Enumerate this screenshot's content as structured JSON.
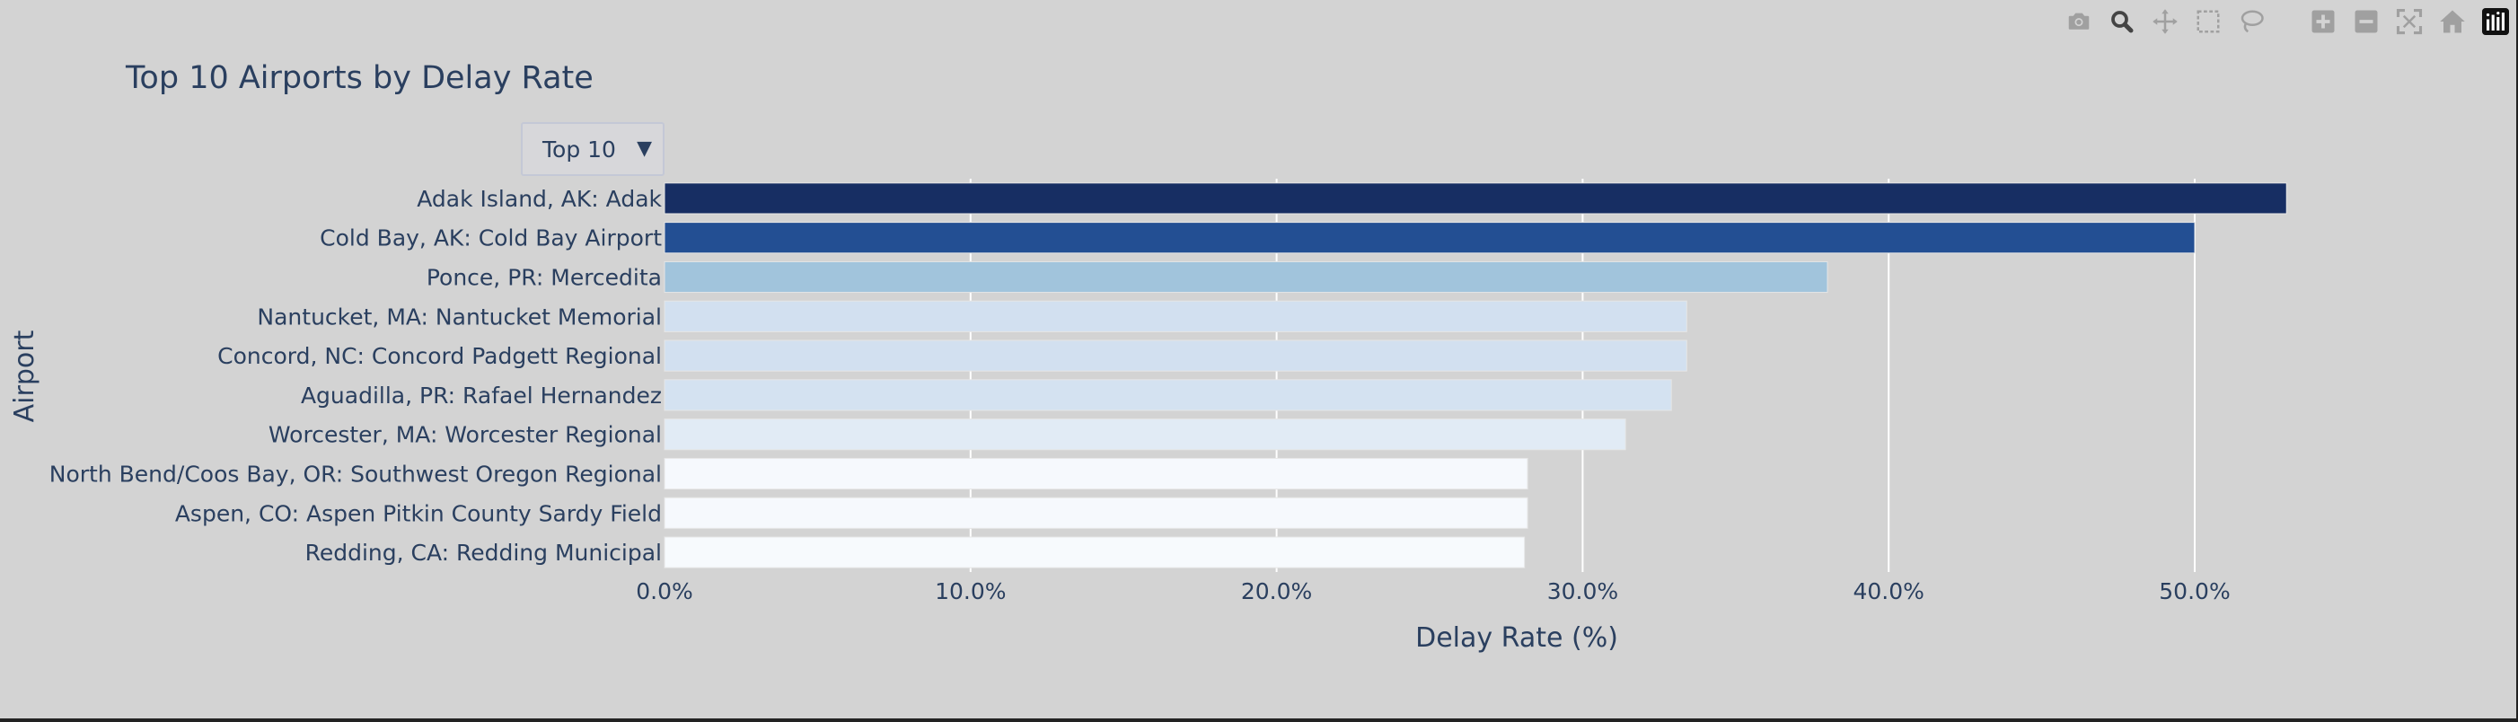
{
  "chart_data": {
    "type": "bar",
    "orientation": "horizontal",
    "title": "Top 10 Airports by Delay Rate",
    "xlabel": "Delay Rate (%)",
    "ylabel": "Airport",
    "xlim": [
      0,
      60
    ],
    "x_tick_values": [
      0,
      10,
      20,
      30,
      40,
      50
    ],
    "x_tick_labels": [
      "0.0%",
      "10.0%",
      "20.0%",
      "30.0%",
      "40.0%",
      "50.0%"
    ],
    "categories": [
      "Adak Island, AK: Adak",
      "Cold Bay, AK: Cold Bay Airport",
      "Ponce, PR: Mercedita",
      "Nantucket, MA: Nantucket Memorial",
      "Concord, NC: Concord Padgett Regional",
      "Aguadilla, PR: Rafael Hernandez",
      "Worcester, MA: Worcester Regional",
      "North Bend/Coos Bay, OR: Southwest Oregon Regional",
      "Aspen, CO: Aspen Pitkin County Sardy Field",
      "Redding, CA: Redding Municipal"
    ],
    "values": [
      53.0,
      50.0,
      38.0,
      33.4,
      33.4,
      32.9,
      31.4,
      28.2,
      28.2,
      28.1
    ],
    "bar_colors": [
      "#172e63",
      "#234f93",
      "#a1c4dc",
      "#d2e0f0",
      "#d2e0f0",
      "#d4e2f1",
      "#e1ebf5",
      "#f6f9fd",
      "#f6f9fd",
      "#f7fafd"
    ],
    "grid": true,
    "legend": false
  },
  "dropdown": {
    "label": "Top 10",
    "caret": "▼"
  },
  "modebar": {
    "buttons": [
      "camera-icon",
      "zoom-icon",
      "pan-icon",
      "box-select-icon",
      "lasso-icon",
      "zoom-in-icon",
      "zoom-out-icon",
      "autoscale-icon",
      "reset-axes-icon",
      "plotly-logo-icon"
    ]
  },
  "colors": {
    "background": "#d3d3d3",
    "text": "#2a3f5f",
    "grid": "#ffffff",
    "icon": "#a0a0a0",
    "icon_active": "#444444"
  }
}
